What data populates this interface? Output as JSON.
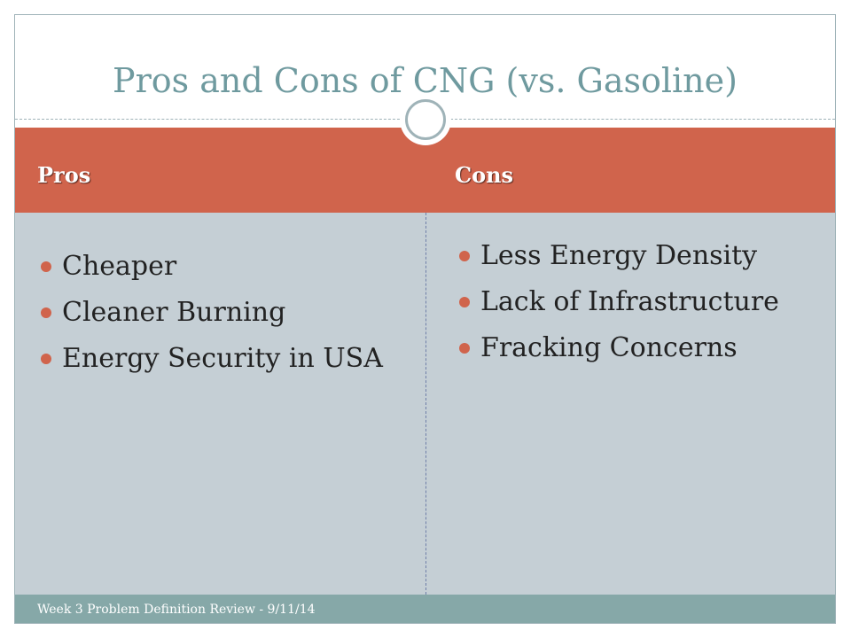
{
  "slide": {
    "title": "Pros and Cons of CNG (vs. Gasoline)",
    "columns": [
      {
        "heading": "Pros",
        "items": [
          "Cheaper",
          "Cleaner Burning",
          "Energy Security in USA"
        ]
      },
      {
        "heading": "Cons",
        "items": [
          "Less Energy Density",
          "Lack of Infrastructure",
          "Fracking Concerns"
        ]
      }
    ],
    "footer": "Week 3 Problem Definition Review - 9/11/14"
  },
  "colors": {
    "header_band": "#d0644c",
    "content_bg": "#c5cfd5",
    "title_text": "#6f9a9f",
    "footer_band": "#86a8a8",
    "bullet": "#d0644c"
  },
  "icons": {
    "ornament": "circle-ring-icon",
    "bullet": "bullet-dot-icon"
  }
}
